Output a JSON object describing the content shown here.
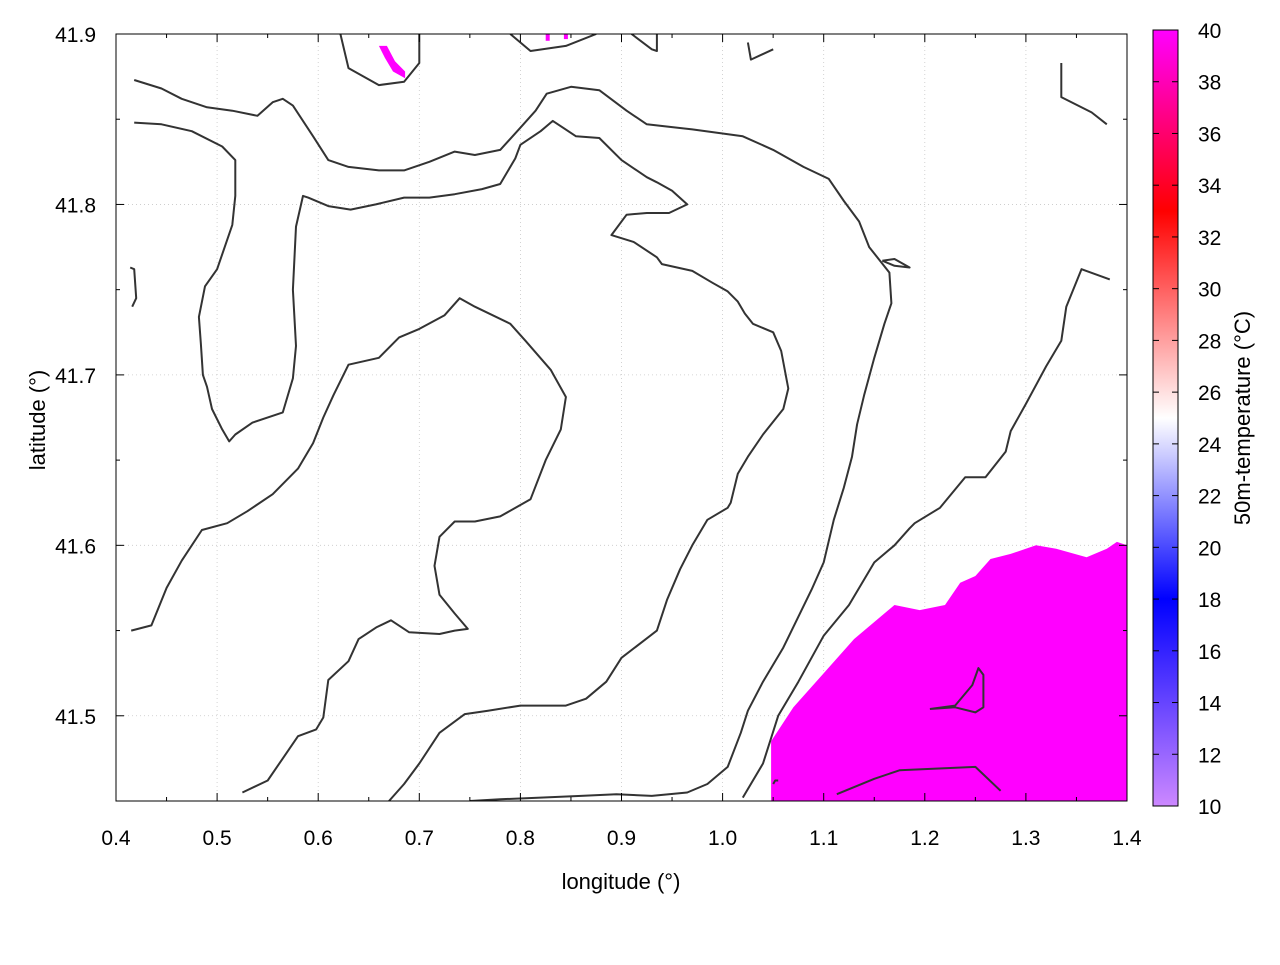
{
  "chart_data": {
    "type": "heatmap",
    "title": "",
    "xlabel": "longitude (°)",
    "ylabel": "latitude (°)",
    "xlim": [
      0.4,
      1.4
    ],
    "ylim": [
      41.45,
      41.9
    ],
    "x_ticks": [
      0.4,
      0.5,
      0.6,
      0.7,
      0.8,
      0.9,
      1.0,
      1.1,
      1.2,
      1.3,
      1.4
    ],
    "x_tick_labels": [
      "0.4",
      "0.5",
      "0.6",
      "0.7",
      "0.8",
      "0.9",
      "1.0",
      "1.1",
      "1.2",
      "1.3",
      "1.4"
    ],
    "y_ticks": [
      41.5,
      41.6,
      41.7,
      41.8,
      41.9
    ],
    "y_tick_labels": [
      "41.5",
      "41.6",
      "41.7",
      "41.8",
      "41.9"
    ],
    "grid": true,
    "colorbar": {
      "label": "50m-temperature (°C)",
      "range": [
        10,
        40
      ],
      "ticks": [
        10,
        12,
        14,
        16,
        18,
        20,
        22,
        24,
        26,
        28,
        30,
        32,
        34,
        36,
        38,
        40
      ],
      "tick_labels": [
        "10",
        "12",
        "14",
        "16",
        "18",
        "20",
        "22",
        "24",
        "26",
        "28",
        "30",
        "32",
        "34",
        "36",
        "38",
        "40"
      ],
      "color_stops": [
        {
          "value": 10,
          "color": "#cc88ff"
        },
        {
          "value": 18,
          "color": "#0000ff"
        },
        {
          "value": 25,
          "color": "#ffffff"
        },
        {
          "value": 33,
          "color": "#ff0000"
        },
        {
          "value": 40,
          "color": "#ff00ff"
        }
      ]
    },
    "heat_regions": [
      {
        "name": "southeast-region",
        "value": 40,
        "color": "#ff00ff",
        "polygon": [
          [
            1.048,
            41.45
          ],
          [
            1.048,
            41.485
          ],
          [
            1.07,
            41.505
          ],
          [
            1.1,
            41.525
          ],
          [
            1.13,
            41.545
          ],
          [
            1.17,
            41.565
          ],
          [
            1.195,
            41.562
          ],
          [
            1.22,
            41.565
          ],
          [
            1.235,
            41.578
          ],
          [
            1.25,
            41.582
          ],
          [
            1.265,
            41.592
          ],
          [
            1.285,
            41.595
          ],
          [
            1.31,
            41.6
          ],
          [
            1.33,
            41.598
          ],
          [
            1.36,
            41.593
          ],
          [
            1.38,
            41.598
          ],
          [
            1.39,
            41.602
          ],
          [
            1.4,
            41.6
          ],
          [
            1.4,
            41.45
          ]
        ]
      },
      {
        "name": "north-patch-1",
        "value": 40,
        "color": "#ff00ff",
        "polygon": [
          [
            0.66,
            41.893
          ],
          [
            0.668,
            41.893
          ],
          [
            0.676,
            41.884
          ],
          [
            0.686,
            41.878
          ],
          [
            0.686,
            41.874
          ],
          [
            0.674,
            41.878
          ],
          [
            0.666,
            41.886
          ]
        ]
      },
      {
        "name": "north-patch-2",
        "value": 40,
        "color": "#ff00ff",
        "polygon": [
          [
            0.825,
            41.9
          ],
          [
            0.829,
            41.9
          ],
          [
            0.829,
            41.896
          ],
          [
            0.825,
            41.896
          ]
        ]
      },
      {
        "name": "north-patch-3",
        "value": 40,
        "color": "#ff00ff",
        "polygon": [
          [
            0.843,
            41.9
          ],
          [
            0.847,
            41.9
          ],
          [
            0.847,
            41.897
          ],
          [
            0.843,
            41.897
          ]
        ]
      }
    ],
    "contours": [
      [
        [
          0.418,
          41.873
        ],
        [
          0.445,
          41.868
        ],
        [
          0.465,
          41.862
        ],
        [
          0.49,
          41.857
        ],
        [
          0.515,
          41.855
        ],
        [
          0.54,
          41.852
        ],
        [
          0.555,
          41.86
        ],
        [
          0.565,
          41.862
        ],
        [
          0.575,
          41.858
        ],
        [
          0.595,
          41.84
        ],
        [
          0.61,
          41.826
        ],
        [
          0.63,
          41.822
        ],
        [
          0.66,
          41.82
        ],
        [
          0.685,
          41.82
        ],
        [
          0.71,
          41.825
        ],
        [
          0.735,
          41.831
        ],
        [
          0.755,
          41.829
        ],
        [
          0.78,
          41.832
        ],
        [
          0.8,
          41.845
        ],
        [
          0.815,
          41.855
        ],
        [
          0.826,
          41.865
        ],
        [
          0.85,
          41.869
        ],
        [
          0.878,
          41.867
        ],
        [
          0.905,
          41.855
        ],
        [
          0.925,
          41.847
        ],
        [
          0.97,
          41.844
        ],
        [
          1.02,
          41.84
        ],
        [
          1.05,
          41.832
        ],
        [
          1.08,
          41.822
        ],
        [
          1.105,
          41.815
        ],
        [
          1.12,
          41.802
        ],
        [
          1.135,
          41.79
        ],
        [
          1.145,
          41.775
        ],
        [
          1.165,
          41.76
        ],
        [
          1.167,
          41.742
        ],
        [
          1.16,
          41.73
        ],
        [
          1.15,
          41.71
        ],
        [
          1.14,
          41.688
        ],
        [
          1.133,
          41.671
        ],
        [
          1.128,
          41.652
        ],
        [
          1.12,
          41.634
        ],
        [
          1.11,
          41.615
        ],
        [
          1.1,
          41.59
        ],
        [
          1.088,
          41.574
        ],
        [
          1.06,
          41.54
        ],
        [
          1.04,
          41.52
        ],
        [
          1.025,
          41.503
        ],
        [
          1.018,
          41.49
        ],
        [
          1.005,
          41.47
        ],
        [
          0.985,
          41.46
        ],
        [
          0.965,
          41.455
        ],
        [
          0.93,
          41.453
        ],
        [
          0.895,
          41.454
        ],
        [
          0.86,
          41.453
        ],
        [
          0.82,
          41.452
        ],
        [
          0.78,
          41.451
        ],
        [
          0.75,
          41.45
        ]
      ],
      [
        [
          0.418,
          41.848
        ],
        [
          0.445,
          41.847
        ],
        [
          0.475,
          41.843
        ],
        [
          0.505,
          41.834
        ],
        [
          0.518,
          41.826
        ],
        [
          0.518,
          41.805
        ],
        [
          0.515,
          41.788
        ],
        [
          0.5,
          41.762
        ],
        [
          0.488,
          41.752
        ],
        [
          0.482,
          41.734
        ],
        [
          0.484,
          41.718
        ],
        [
          0.486,
          41.7
        ],
        [
          0.49,
          41.693
        ],
        [
          0.495,
          41.68
        ],
        [
          0.505,
          41.668
        ],
        [
          0.512,
          41.661
        ],
        [
          0.518,
          41.665
        ],
        [
          0.535,
          41.672
        ],
        [
          0.565,
          41.678
        ],
        [
          0.575,
          41.698
        ],
        [
          0.578,
          41.717
        ],
        [
          0.575,
          41.75
        ],
        [
          0.578,
          41.787
        ],
        [
          0.585,
          41.805
        ],
        [
          0.59,
          41.804
        ],
        [
          0.61,
          41.799
        ],
        [
          0.632,
          41.797
        ],
        [
          0.657,
          41.8
        ],
        [
          0.685,
          41.804
        ],
        [
          0.71,
          41.804
        ],
        [
          0.735,
          41.806
        ],
        [
          0.762,
          41.809
        ],
        [
          0.78,
          41.812
        ],
        [
          0.795,
          41.827
        ],
        [
          0.8,
          41.835
        ],
        [
          0.82,
          41.843
        ],
        [
          0.832,
          41.849
        ],
        [
          0.855,
          41.84
        ],
        [
          0.878,
          41.839
        ],
        [
          0.9,
          41.826
        ],
        [
          0.925,
          41.816
        ],
        [
          0.935,
          41.813
        ],
        [
          0.95,
          41.808
        ],
        [
          0.965,
          41.8
        ],
        [
          0.947,
          41.795
        ],
        [
          0.925,
          41.795
        ],
        [
          0.905,
          41.794
        ],
        [
          0.89,
          41.782
        ],
        [
          0.912,
          41.778
        ],
        [
          0.935,
          41.769
        ],
        [
          0.94,
          41.765
        ],
        [
          0.97,
          41.761
        ],
        [
          0.99,
          41.754
        ],
        [
          1.005,
          41.749
        ],
        [
          1.015,
          41.743
        ],
        [
          1.022,
          41.736
        ],
        [
          1.03,
          41.73
        ],
        [
          1.05,
          41.725
        ],
        [
          1.058,
          41.714
        ],
        [
          1.065,
          41.692
        ],
        [
          1.06,
          41.68
        ],
        [
          1.04,
          41.665
        ],
        [
          1.025,
          41.652
        ],
        [
          1.015,
          41.642
        ],
        [
          1.008,
          41.625
        ],
        [
          1.005,
          41.622
        ],
        [
          0.985,
          41.615
        ],
        [
          0.97,
          41.6
        ],
        [
          0.958,
          41.586
        ],
        [
          0.945,
          41.568
        ],
        [
          0.935,
          41.55
        ],
        [
          0.9,
          41.534
        ],
        [
          0.885,
          41.52
        ],
        [
          0.865,
          41.51
        ],
        [
          0.845,
          41.506
        ],
        [
          0.82,
          41.506
        ],
        [
          0.8,
          41.506
        ],
        [
          0.768,
          41.503
        ],
        [
          0.745,
          41.501
        ],
        [
          0.72,
          41.49
        ],
        [
          0.7,
          41.472
        ],
        [
          0.685,
          41.46
        ],
        [
          0.67,
          41.45
        ]
      ],
      [
        [
          0.415,
          41.55
        ],
        [
          0.435,
          41.553
        ],
        [
          0.45,
          41.575
        ],
        [
          0.465,
          41.591
        ],
        [
          0.485,
          41.609
        ],
        [
          0.51,
          41.613
        ],
        [
          0.53,
          41.62
        ],
        [
          0.555,
          41.63
        ],
        [
          0.58,
          41.645
        ],
        [
          0.595,
          41.66
        ],
        [
          0.605,
          41.675
        ],
        [
          0.615,
          41.688
        ],
        [
          0.63,
          41.706
        ],
        [
          0.66,
          41.71
        ],
        [
          0.68,
          41.722
        ],
        [
          0.7,
          41.727
        ],
        [
          0.725,
          41.735
        ],
        [
          0.74,
          41.745
        ],
        [
          0.755,
          41.74
        ],
        [
          0.79,
          41.73
        ],
        [
          0.805,
          41.72
        ],
        [
          0.83,
          41.703
        ],
        [
          0.845,
          41.687
        ],
        [
          0.84,
          41.668
        ],
        [
          0.825,
          41.65
        ],
        [
          0.81,
          41.627
        ],
        [
          0.78,
          41.617
        ],
        [
          0.755,
          41.614
        ],
        [
          0.735,
          41.614
        ],
        [
          0.72,
          41.605
        ],
        [
          0.715,
          41.588
        ],
        [
          0.72,
          41.571
        ],
        [
          0.735,
          41.56
        ],
        [
          0.748,
          41.551
        ],
        [
          0.735,
          41.55
        ],
        [
          0.72,
          41.548
        ],
        [
          0.69,
          41.549
        ],
        [
          0.672,
          41.556
        ],
        [
          0.658,
          41.552
        ],
        [
          0.64,
          41.545
        ],
        [
          0.63,
          41.532
        ],
        [
          0.61,
          41.521
        ],
        [
          0.605,
          41.499
        ],
        [
          0.598,
          41.492
        ],
        [
          0.58,
          41.488
        ],
        [
          0.565,
          41.475
        ],
        [
          0.55,
          41.462
        ],
        [
          0.525,
          41.455
        ]
      ],
      [
        [
          0.414,
          41.763
        ],
        [
          0.418,
          41.762
        ],
        [
          0.42,
          41.745
        ],
        [
          0.416,
          41.74
        ]
      ],
      [
        [
          0.622,
          41.9
        ],
        [
          0.63,
          41.88
        ],
        [
          0.66,
          41.87
        ],
        [
          0.685,
          41.872
        ],
        [
          0.7,
          41.883
        ],
        [
          0.7,
          41.9
        ]
      ],
      [
        [
          0.79,
          41.9
        ],
        [
          0.81,
          41.89
        ],
        [
          0.845,
          41.893
        ],
        [
          0.875,
          41.9
        ]
      ],
      [
        [
          0.91,
          41.9
        ],
        [
          0.93,
          41.891
        ],
        [
          0.935,
          41.89
        ],
        [
          0.935,
          41.9
        ]
      ],
      [
        [
          1.025,
          41.895
        ],
        [
          1.028,
          41.885
        ],
        [
          1.05,
          41.891
        ]
      ],
      [
        [
          1.335,
          41.883
        ],
        [
          1.335,
          41.863
        ],
        [
          1.365,
          41.854
        ],
        [
          1.38,
          41.847
        ]
      ],
      [
        [
          1.158,
          41.767
        ],
        [
          1.17,
          41.768
        ],
        [
          1.185,
          41.763
        ],
        [
          1.17,
          41.764
        ],
        [
          1.158,
          41.767
        ]
      ],
      [
        [
          1.205,
          41.504
        ],
        [
          1.23,
          41.505
        ],
        [
          1.25,
          41.502
        ],
        [
          1.258,
          41.505
        ],
        [
          1.258,
          41.524
        ],
        [
          1.253,
          41.528
        ],
        [
          1.247,
          41.518
        ],
        [
          1.23,
          41.506
        ],
        [
          1.205,
          41.504
        ]
      ],
      [
        [
          1.113,
          41.454
        ],
        [
          1.15,
          41.463
        ],
        [
          1.175,
          41.468
        ],
        [
          1.25,
          41.47
        ],
        [
          1.275,
          41.456
        ]
      ],
      [
        [
          1.02,
          41.452
        ],
        [
          1.04,
          41.472
        ],
        [
          1.055,
          41.5
        ],
        [
          1.075,
          41.52
        ],
        [
          1.1,
          41.547
        ],
        [
          1.125,
          41.565
        ],
        [
          1.15,
          41.59
        ],
        [
          1.17,
          41.6
        ],
        [
          1.185,
          41.61
        ],
        [
          1.19,
          41.613
        ],
        [
          1.215,
          41.622
        ],
        [
          1.24,
          41.64
        ],
        [
          1.26,
          41.64
        ],
        [
          1.28,
          41.655
        ],
        [
          1.285,
          41.667
        ],
        [
          1.3,
          41.683
        ],
        [
          1.32,
          41.705
        ],
        [
          1.335,
          41.72
        ],
        [
          1.34,
          41.74
        ],
        [
          1.355,
          41.762
        ],
        [
          1.383,
          41.756
        ]
      ],
      [
        [
          1.05,
          41.46
        ],
        [
          1.052,
          41.462
        ],
        [
          1.055,
          41.462
        ]
      ]
    ]
  }
}
